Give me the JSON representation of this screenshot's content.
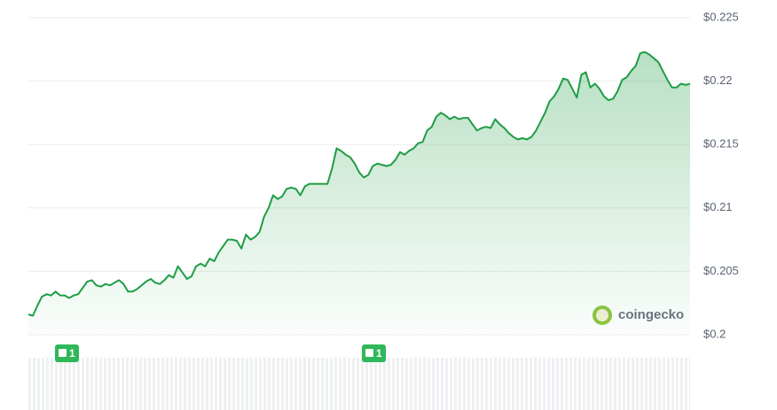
{
  "chart_data": {
    "type": "line",
    "color": "#1f9d45",
    "grid": true,
    "ylim": [
      0.2,
      0.225
    ],
    "yticks": [
      {
        "value": 0.2,
        "label": "$0.2"
      },
      {
        "value": 0.205,
        "label": "$0.205"
      },
      {
        "value": 0.21,
        "label": "$0.21"
      },
      {
        "value": 0.215,
        "label": "$0.215"
      },
      {
        "value": 0.22,
        "label": "$0.22"
      },
      {
        "value": 0.225,
        "label": "$0.225"
      }
    ],
    "values": [
      0.2016,
      0.2015,
      0.2023,
      0.203,
      0.2032,
      0.2031,
      0.2034,
      0.2031,
      0.2031,
      0.2029,
      0.2031,
      0.2032,
      0.2037,
      0.2042,
      0.2043,
      0.2039,
      0.2038,
      0.204,
      0.2039,
      0.2041,
      0.2043,
      0.204,
      0.2034,
      0.2034,
      0.2036,
      0.2039,
      0.2042,
      0.2044,
      0.2041,
      0.204,
      0.2043,
      0.2047,
      0.2045,
      0.2054,
      0.2049,
      0.2044,
      0.2046,
      0.2054,
      0.2056,
      0.2054,
      0.206,
      0.2058,
      0.2065,
      0.207,
      0.2075,
      0.2075,
      0.2074,
      0.2068,
      0.2079,
      0.2075,
      0.2077,
      0.2081,
      0.2093,
      0.21,
      0.211,
      0.2107,
      0.2109,
      0.2115,
      0.2116,
      0.2115,
      0.211,
      0.2117,
      0.2119,
      0.2119,
      0.2119,
      0.2119,
      0.2119,
      0.2131,
      0.2147,
      0.2145,
      0.2142,
      0.214,
      0.2135,
      0.2128,
      0.2124,
      0.2126,
      0.2133,
      0.2135,
      0.2134,
      0.2133,
      0.2134,
      0.2138,
      0.2144,
      0.2142,
      0.2145,
      0.2147,
      0.2151,
      0.2152,
      0.2161,
      0.2164,
      0.2172,
      0.2175,
      0.2173,
      0.217,
      0.2172,
      0.217,
      0.2171,
      0.2171,
      0.2166,
      0.2161,
      0.2163,
      0.2164,
      0.2163,
      0.217,
      0.2166,
      0.2163,
      0.2159,
      0.2156,
      0.2154,
      0.2155,
      0.2154,
      0.2156,
      0.2161,
      0.2168,
      0.2175,
      0.2184,
      0.2188,
      0.2194,
      0.2202,
      0.2201,
      0.2194,
      0.2187,
      0.2205,
      0.2207,
      0.2195,
      0.2198,
      0.2194,
      0.2188,
      0.2185,
      0.2186,
      0.2192,
      0.2201,
      0.2203,
      0.2208,
      0.2212,
      0.2222,
      0.2223,
      0.2221,
      0.2218,
      0.2215,
      0.2208,
      0.2201,
      0.2195,
      0.2195,
      0.2198,
      0.2197,
      0.2198
    ],
    "annotations": [
      "1",
      "1"
    ],
    "watermark": "coingecko"
  }
}
